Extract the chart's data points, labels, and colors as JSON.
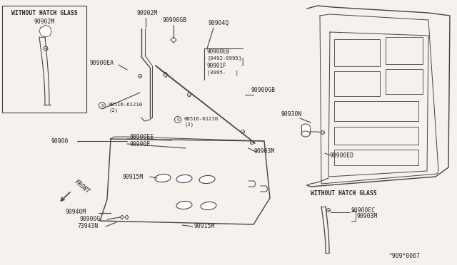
{
  "background_color": "#f5f2ed",
  "line_color": "#444444",
  "text_color": "#222222",
  "figsize": [
    6.4,
    3.72
  ],
  "dpi": 100,
  "labels": {
    "top_left_box_title": "WITHOUT HATCH GLASS",
    "top_left_part": "90902M",
    "top_center_parts": [
      "90902M",
      "90900GB",
      "90904Q"
    ],
    "center_right_parts": [
      "90900EB",
      "[0492-0995]",
      "90901F",
      "[0995-   ]",
      "90900GB"
    ],
    "bolt1": "08516-61210",
    "bolt1_qty": "(2)",
    "bolt2": "08516-61210",
    "bolt2_qty": "(2)",
    "left_parts": [
      "90900EA",
      "90900",
      "90900E",
      "90900EE"
    ],
    "bottom_parts": [
      "90915M",
      "90940M",
      "90900G",
      "73943N",
      "90915M"
    ],
    "right_parts": [
      "90930N",
      "90900ED",
      "90903M"
    ],
    "bottom_right_title": "WITHOUT HATCH GLASS",
    "bottom_right_parts": [
      "90900EC",
      "90903M"
    ],
    "center_right_strip": "90903M",
    "diagram_num": "^909*0067",
    "front": "FRONT"
  }
}
